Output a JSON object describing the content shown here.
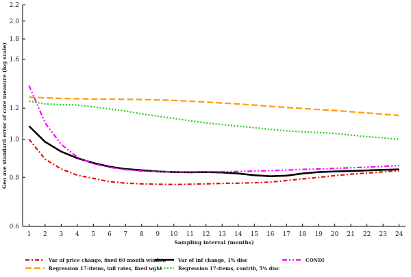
{
  "chart_data": {
    "type": "line",
    "title": "",
    "xlabel": "Sampling interval (months)",
    "ylabel": "Geo ave standard error of core measure (log scale)",
    "x": [
      1,
      2,
      3,
      4,
      5,
      6,
      7,
      8,
      9,
      10,
      11,
      12,
      13,
      14,
      15,
      16,
      17,
      18,
      19,
      20,
      21,
      22,
      23,
      24
    ],
    "xlim": [
      0.6,
      24.4
    ],
    "ylim": [
      0.6,
      2.2
    ],
    "y_scale": "log",
    "y_ticks": [
      0.6,
      0.8,
      1.0,
      1.2,
      1.6,
      1.8,
      2.0,
      2.2
    ],
    "x_ticks": [
      1,
      2,
      3,
      4,
      5,
      6,
      7,
      8,
      9,
      10,
      11,
      12,
      13,
      14,
      15,
      16,
      17,
      18,
      19,
      20,
      21,
      22,
      23,
      24
    ],
    "legend_position": "bottom",
    "series": [
      {
        "name": "Var of price change, fixed 60 month window",
        "color": "#e01010",
        "dash": "dash-dot",
        "values": [
          1.0,
          0.89,
          0.84,
          0.81,
          0.795,
          0.78,
          0.773,
          0.77,
          0.768,
          0.767,
          0.768,
          0.77,
          0.772,
          0.773,
          0.775,
          0.778,
          0.785,
          0.793,
          0.8,
          0.808,
          0.815,
          0.82,
          0.826,
          0.832
        ]
      },
      {
        "name": "Var of inf change, 1% disc",
        "color": "#000000",
        "dash": "solid",
        "values": [
          1.08,
          0.985,
          0.93,
          0.895,
          0.87,
          0.852,
          0.84,
          0.834,
          0.828,
          0.825,
          0.824,
          0.825,
          0.823,
          0.818,
          0.81,
          0.805,
          0.808,
          0.818,
          0.825,
          0.828,
          0.83,
          0.833,
          0.836,
          0.838
        ]
      },
      {
        "name": "CONDI",
        "color": "#ff00ff",
        "dash": "dash-dot-dot",
        "values": [
          1.37,
          1.1,
          0.97,
          0.9,
          0.866,
          0.848,
          0.837,
          0.83,
          0.827,
          0.826,
          0.826,
          0.827,
          0.827,
          0.828,
          0.83,
          0.832,
          0.835,
          0.838,
          0.84,
          0.843,
          0.846,
          0.849,
          0.853,
          0.857
        ]
      },
      {
        "name": "Regression 17-items, infl rates, fixed wght",
        "color": "#ff9900",
        "dash": "long-dash",
        "values": [
          1.28,
          1.275,
          1.27,
          1.268,
          1.266,
          1.265,
          1.264,
          1.262,
          1.26,
          1.256,
          1.25,
          1.244,
          1.237,
          1.23,
          1.222,
          1.213,
          1.205,
          1.198,
          1.19,
          1.184,
          1.175,
          1.167,
          1.158,
          1.15
        ]
      },
      {
        "name": "Regression 17-items, contrib, 5% disc",
        "color": "#22cc22",
        "dash": "dotted",
        "values": [
          1.25,
          1.23,
          1.225,
          1.222,
          1.21,
          1.195,
          1.18,
          1.16,
          1.145,
          1.13,
          1.115,
          1.1,
          1.09,
          1.08,
          1.07,
          1.06,
          1.05,
          1.045,
          1.04,
          1.035,
          1.025,
          1.015,
          1.008,
          1.0
        ]
      }
    ]
  }
}
